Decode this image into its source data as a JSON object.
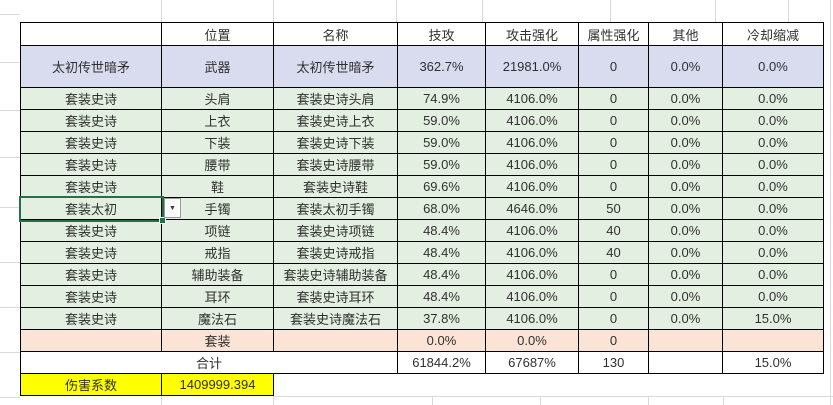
{
  "sheet": {
    "header": [
      "",
      "位置",
      "名称",
      "技攻",
      "攻击强化",
      "属性强化",
      "其他",
      "冷却缩减"
    ],
    "rows": [
      {
        "style": "blue",
        "cells": [
          "太初传世暗矛",
          "武器",
          "太初传世暗矛",
          "362.7%",
          "21981.0%",
          "0",
          "0.0%",
          "0.0%"
        ]
      },
      {
        "style": "green",
        "cells": [
          "套装史诗",
          "头肩",
          "套装史诗头肩",
          "74.9%",
          "4106.0%",
          "0",
          "0.0%",
          "0.0%"
        ]
      },
      {
        "style": "green",
        "cells": [
          "套装史诗",
          "上衣",
          "套装史诗上衣",
          "59.0%",
          "4106.0%",
          "0",
          "0.0%",
          "0.0%"
        ]
      },
      {
        "style": "green",
        "cells": [
          "套装史诗",
          "下装",
          "套装史诗下装",
          "59.0%",
          "4106.0%",
          "0",
          "0.0%",
          "0.0%"
        ]
      },
      {
        "style": "green",
        "cells": [
          "套装史诗",
          "腰带",
          "套装史诗腰带",
          "59.0%",
          "4106.0%",
          "0",
          "0.0%",
          "0.0%"
        ]
      },
      {
        "style": "green",
        "cells": [
          "套装史诗",
          "鞋",
          "套装史诗鞋",
          "69.6%",
          "4106.0%",
          "0",
          "0.0%",
          "0.0%"
        ]
      },
      {
        "style": "green",
        "selected": true,
        "cells": [
          "套装太初",
          "手镯",
          "套装太初手镯",
          "68.0%",
          "4646.0%",
          "50",
          "0.0%",
          "0.0%"
        ]
      },
      {
        "style": "green",
        "cells": [
          "套装史诗",
          "项链",
          "套装史诗项链",
          "48.4%",
          "4106.0%",
          "40",
          "0.0%",
          "0.0%"
        ]
      },
      {
        "style": "green",
        "cells": [
          "套装史诗",
          "戒指",
          "套装史诗戒指",
          "48.4%",
          "4106.0%",
          "40",
          "0.0%",
          "0.0%"
        ]
      },
      {
        "style": "green",
        "cells": [
          "套装史诗",
          "辅助装备",
          "套装史诗辅助装备",
          "48.4%",
          "4106.0%",
          "0",
          "0.0%",
          "0.0%"
        ]
      },
      {
        "style": "green",
        "cells": [
          "套装史诗",
          "耳环",
          "套装史诗耳环",
          "48.4%",
          "4106.0%",
          "0",
          "0.0%",
          "0.0%"
        ]
      },
      {
        "style": "green",
        "cells": [
          "套装史诗",
          "魔法石",
          "套装史诗魔法石",
          "37.8%",
          "4106.0%",
          "0",
          "0.0%",
          "15.0%"
        ]
      },
      {
        "style": "pink",
        "cells": [
          "",
          "套装",
          "",
          "0.0%",
          "0.0%",
          "0",
          "",
          ""
        ]
      }
    ],
    "total_row": {
      "label": "合计",
      "cells": [
        "61844.2%",
        "67687%",
        "130",
        "",
        "15.0%"
      ]
    },
    "damage_row": {
      "label": "伤害系数",
      "value": "1409999.394"
    }
  },
  "selection": {
    "selected_value": "套装太初"
  },
  "icons": {
    "dropdown_arrow": "▼"
  },
  "colors": {
    "weapon_row_blue": "#d9dbef",
    "epic_row_green": "#e3efe0",
    "set_row_pink": "#fbe3d6",
    "damage_row_yellow": "#ffff00",
    "selection_green": "#1f7346",
    "table_border_black": "#000000",
    "sheet_gridline_gray": "#d9d9d9"
  }
}
